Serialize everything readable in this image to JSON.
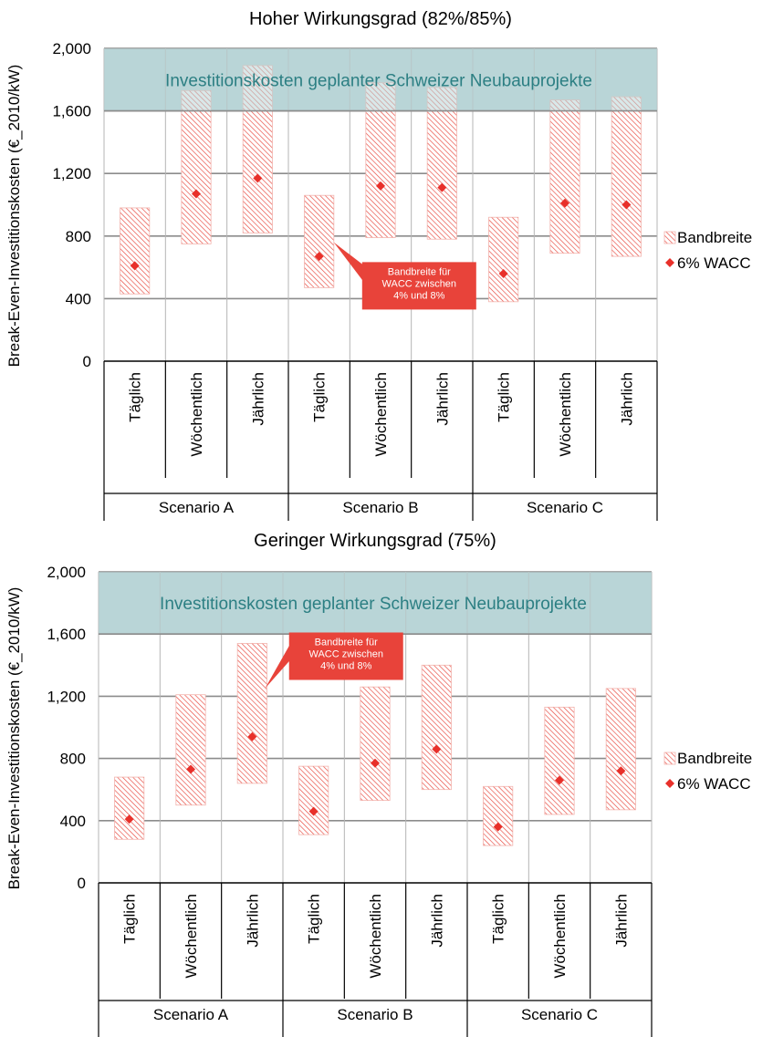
{
  "chart_data": [
    {
      "type": "range",
      "title": "Hoher Wirkungsgrad (82%/85%)",
      "ylabel": "Break-Even-Investitionskosten (€_2010/kW)",
      "ylim": [
        0,
        2000
      ],
      "yticks": [
        "0",
        "400",
        "800",
        "1,200",
        "1,600",
        "2,000"
      ],
      "ytick_values": [
        0,
        400,
        800,
        1200,
        1600,
        2000
      ],
      "band": {
        "from": 1600,
        "to": 2000,
        "label": "Investitionskosten geplanter Schweizer Neubauprojekte"
      },
      "groups": [
        "Scenario A",
        "Scenario B",
        "Scenario C"
      ],
      "categories": [
        "Täglich",
        "Wöchentlich",
        "Jährlich",
        "Täglich",
        "Wöchentlich",
        "Jährlich",
        "Täglich",
        "Wöchentlich",
        "Jährlich"
      ],
      "series": [
        {
          "name": "Bandbreite",
          "low": [
            430,
            750,
            820,
            470,
            790,
            780,
            380,
            690,
            670
          ],
          "high": [
            980,
            1730,
            1890,
            1060,
            1780,
            1750,
            920,
            1670,
            1690
          ]
        },
        {
          "name": "6% WACC",
          "values": [
            610,
            1070,
            1170,
            670,
            1120,
            1110,
            560,
            1010,
            1000
          ]
        }
      ],
      "annotation": {
        "text": [
          "Bandbreite für",
          "WACC zwischen",
          "4% und 8%"
        ],
        "category_index": 3,
        "value": 760
      },
      "legend": {
        "position": "right",
        "items": [
          "Bandbreite",
          "6% WACC"
        ]
      }
    },
    {
      "type": "range",
      "title": "Geringer Wirkungsgrad (75%)",
      "ylabel": "Break-Even-Investitionskosten (€_2010/kW)",
      "ylim": [
        0,
        2000
      ],
      "yticks": [
        "0",
        "400",
        "800",
        "1,200",
        "1,600",
        "2,000"
      ],
      "ytick_values": [
        0,
        400,
        800,
        1200,
        1600,
        2000
      ],
      "band": {
        "from": 1600,
        "to": 2000,
        "label": "Investitionskosten geplanter Schweizer Neubauprojekte"
      },
      "groups": [
        "Scenario A",
        "Scenario B",
        "Scenario C"
      ],
      "categories": [
        "Täglich",
        "Wöchentlich",
        "Jährlich",
        "Täglich",
        "Wöchentlich",
        "Jährlich",
        "Täglich",
        "Wöchentlich",
        "Jährlich"
      ],
      "series": [
        {
          "name": "Bandbreite",
          "low": [
            280,
            500,
            640,
            310,
            530,
            600,
            240,
            440,
            470
          ],
          "high": [
            680,
            1210,
            1540,
            750,
            1260,
            1400,
            620,
            1130,
            1250
          ]
        },
        {
          "name": "6% WACC",
          "values": [
            410,
            730,
            940,
            460,
            770,
            860,
            360,
            660,
            720
          ]
        }
      ],
      "annotation": {
        "text": [
          "Bandbreite für",
          "WACC zwischen",
          "4% und 8%"
        ],
        "category_index": 2,
        "value": 1250
      },
      "legend": {
        "position": "right",
        "items": [
          "Bandbreite",
          "6% WACC"
        ]
      }
    }
  ],
  "colors": {
    "range": "#e8463c",
    "marker": "#e8302a",
    "callout": "#e8433a",
    "band_fill": "#b9d5d7",
    "band_text": "#2c7f83",
    "grid": "#8c8c8c"
  }
}
